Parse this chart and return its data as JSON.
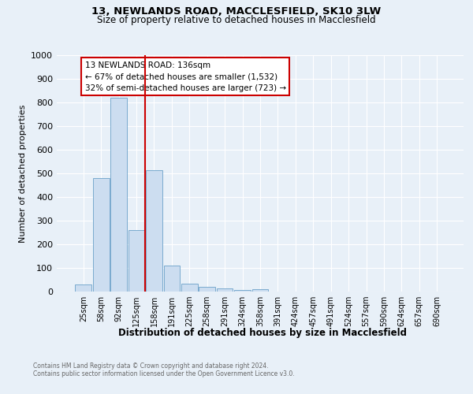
{
  "title_line1": "13, NEWLANDS ROAD, MACCLESFIELD, SK10 3LW",
  "title_line2": "Size of property relative to detached houses in Macclesfield",
  "xlabel": "Distribution of detached houses by size in Macclesfield",
  "ylabel": "Number of detached properties",
  "categories": [
    "25sqm",
    "58sqm",
    "92sqm",
    "125sqm",
    "158sqm",
    "191sqm",
    "225sqm",
    "258sqm",
    "291sqm",
    "324sqm",
    "358sqm",
    "391sqm",
    "424sqm",
    "457sqm",
    "491sqm",
    "524sqm",
    "557sqm",
    "590sqm",
    "624sqm",
    "657sqm",
    "690sqm"
  ],
  "values": [
    30,
    480,
    820,
    260,
    515,
    110,
    35,
    20,
    15,
    8,
    10,
    0,
    0,
    0,
    0,
    0,
    0,
    0,
    0,
    0,
    0
  ],
  "bar_color": "#ccddf0",
  "bar_edge_color": "#7aaace",
  "red_line_x": 3.5,
  "annotation_text_line1": "13 NEWLANDS ROAD: 136sqm",
  "annotation_text_line2": "← 67% of detached houses are smaller (1,532)",
  "annotation_text_line3": "32% of semi-detached houses are larger (723) →",
  "red_line_color": "#cc0000",
  "annotation_box_color": "#ffffff",
  "annotation_box_edge": "#cc0000",
  "ylim": [
    0,
    1000
  ],
  "yticks": [
    0,
    100,
    200,
    300,
    400,
    500,
    600,
    700,
    800,
    900,
    1000
  ],
  "footnote_line1": "Contains HM Land Registry data © Crown copyright and database right 2024.",
  "footnote_line2": "Contains public sector information licensed under the Open Government Licence v3.0.",
  "bg_color": "#e8f0f8",
  "grid_color": "#ffffff",
  "title1_fontsize": 9.5,
  "title2_fontsize": 8.5,
  "ylabel_fontsize": 8,
  "xlabel_fontsize": 8.5,
  "tick_fontsize": 7,
  "annot_fontsize": 7.5,
  "footnote_fontsize": 5.5
}
